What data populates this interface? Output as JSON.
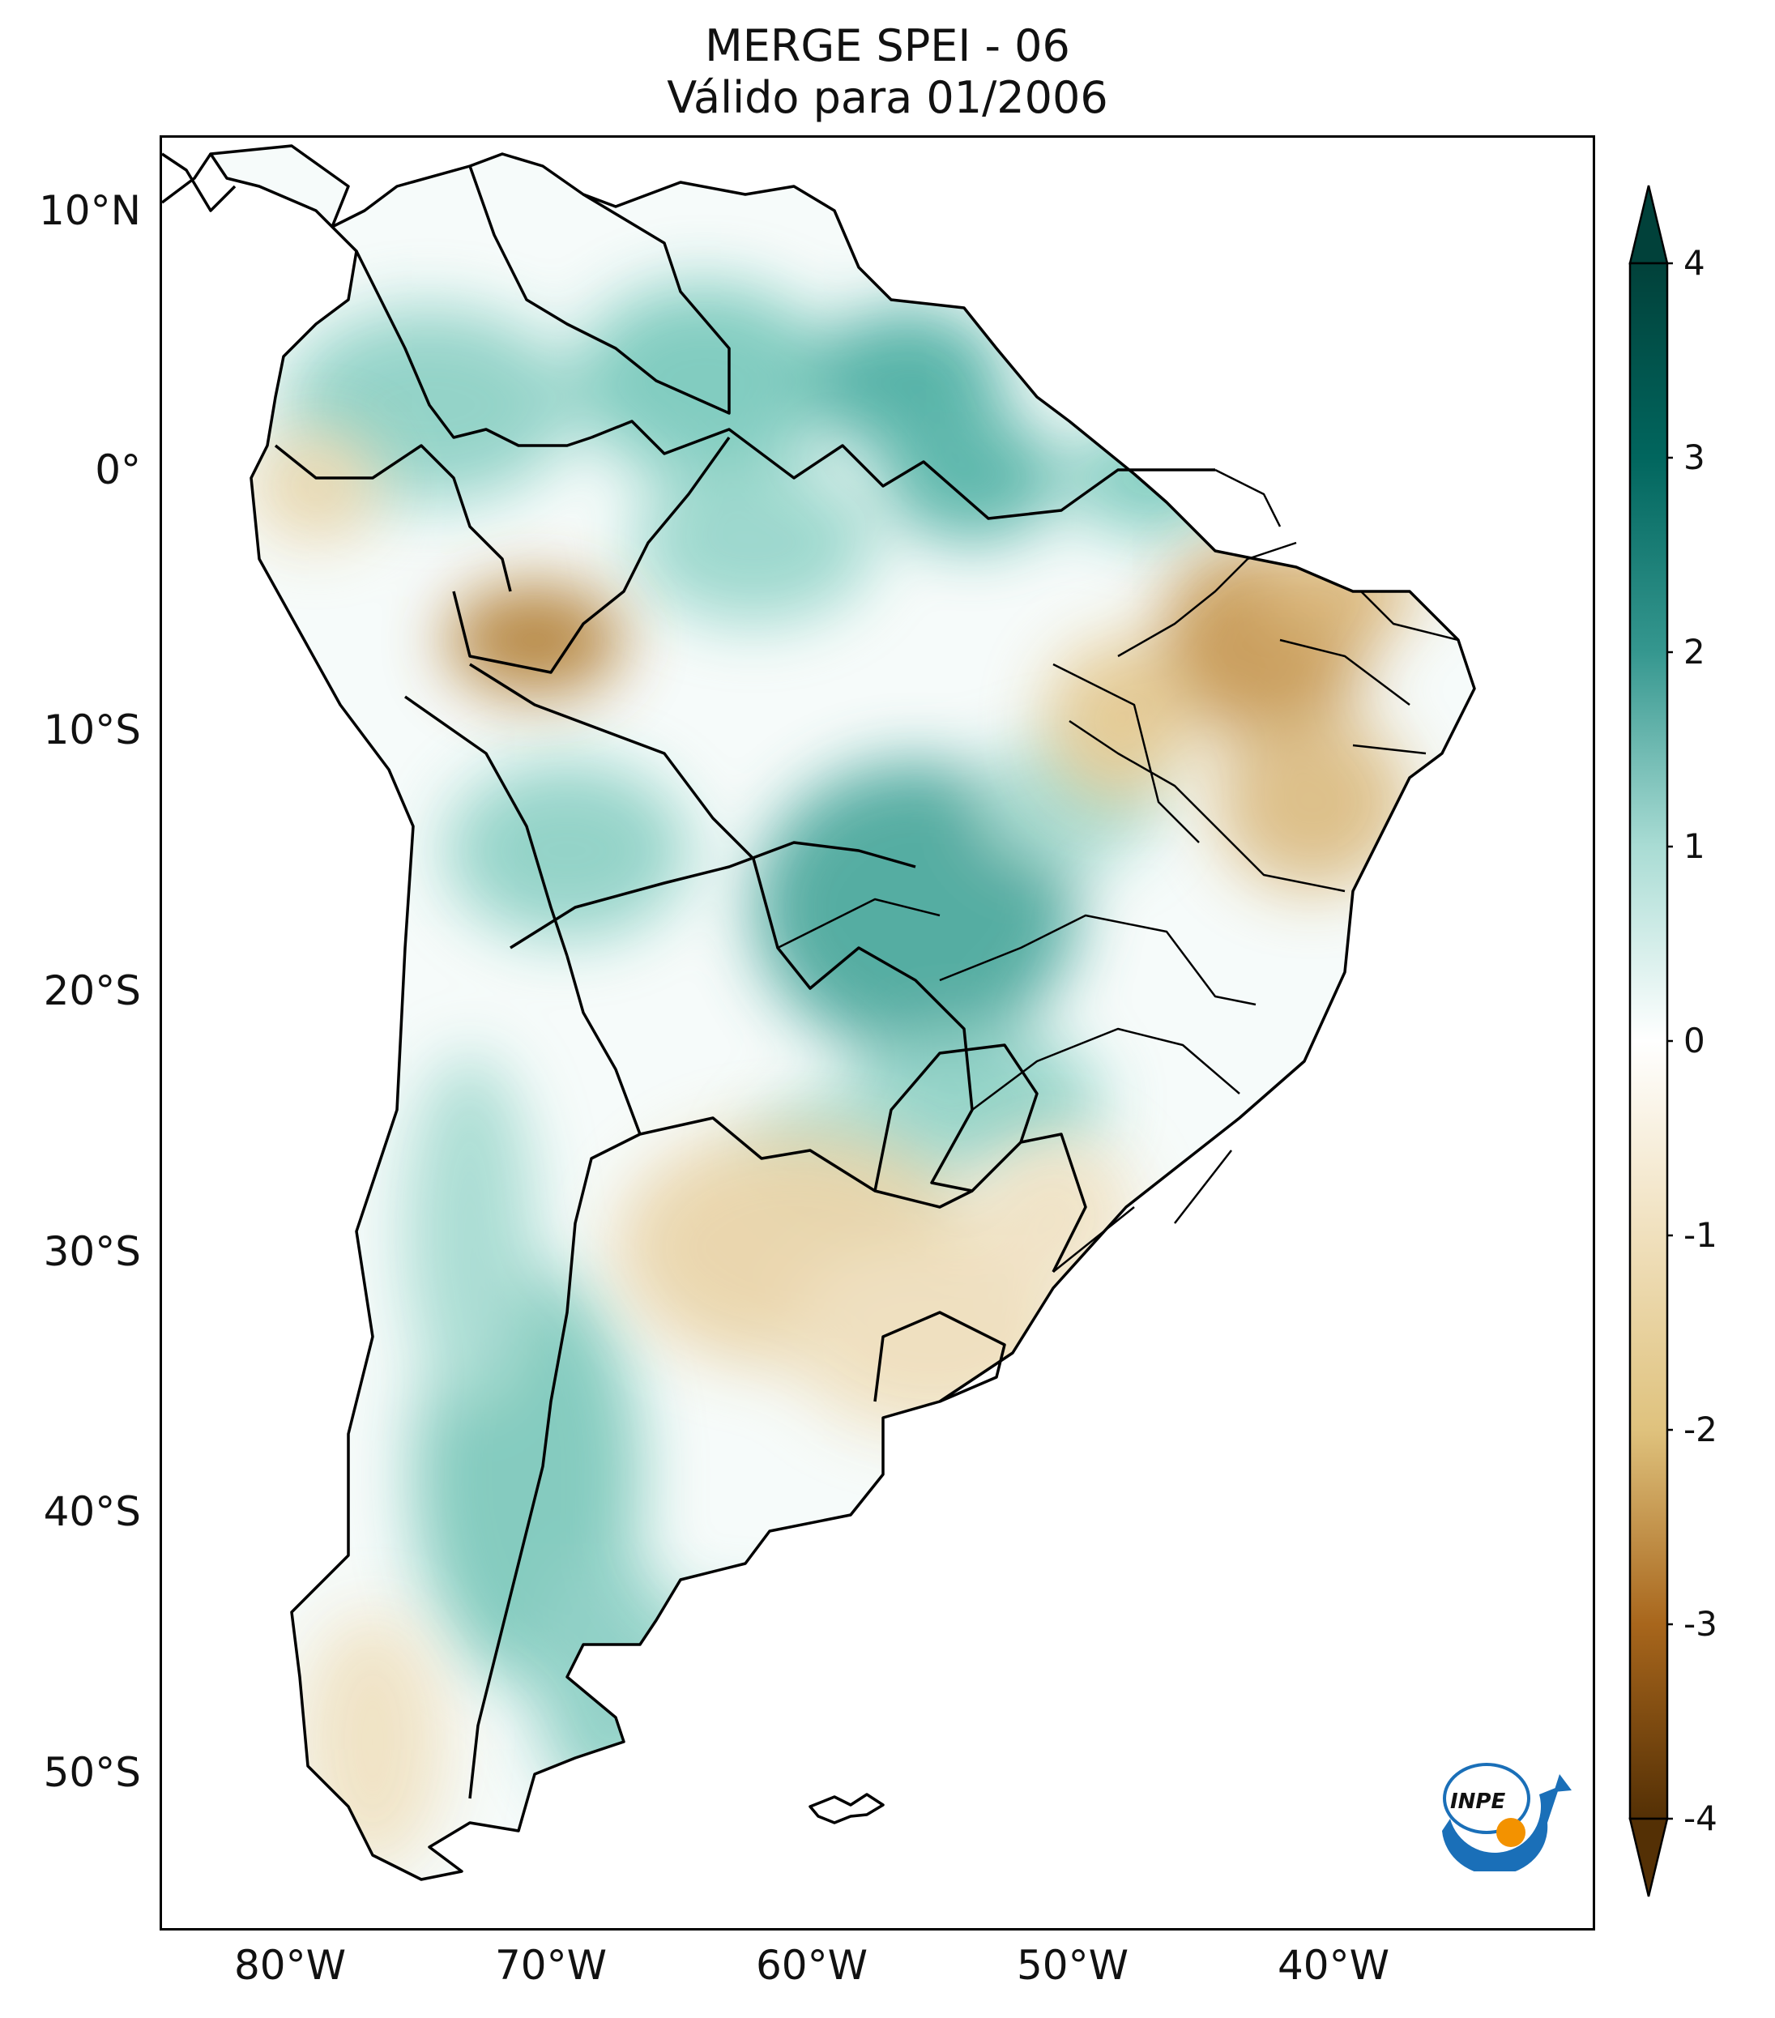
{
  "title": {
    "line1": "MERGE   SPEI - 06",
    "line2": "Válido para 01/2006"
  },
  "lat_labels": [
    "10°N",
    "0°",
    "10°S",
    "20°S",
    "30°S",
    "40°S",
    "50°S"
  ],
  "lon_labels": [
    "80°W",
    "70°W",
    "60°W",
    "50°W",
    "40°W"
  ],
  "colorbar": {
    "ticks": [
      "4",
      "3",
      "2",
      "1",
      "0",
      "-1",
      "-2",
      "-3",
      "-4"
    ],
    "min": -4,
    "max": 4,
    "extend": "both",
    "colors": {
      "wet_max": "#01413a",
      "wet": "#35978f",
      "neutral": "#ffffff",
      "dry": "#dfc27d",
      "dry_max": "#543005"
    }
  },
  "logo": {
    "text": "INPE",
    "colors": {
      "blue": "#1a6fb8",
      "orange": "#f39200"
    }
  },
  "map": {
    "extent_lon": [
      -85,
      -30
    ],
    "extent_lat": [
      -56,
      13
    ],
    "variable": "SPEI-06",
    "date": "01/2006"
  }
}
